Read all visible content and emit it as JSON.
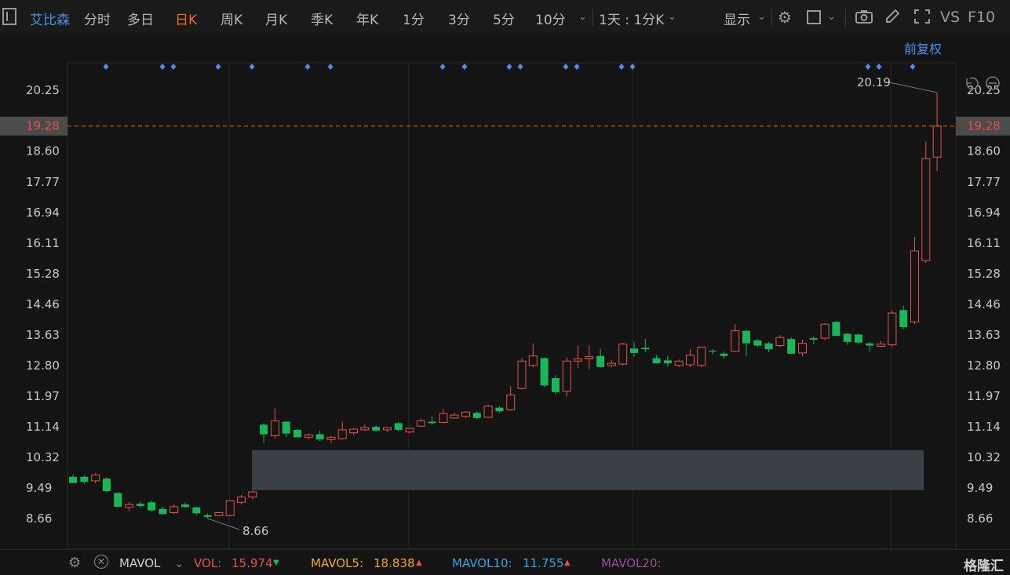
{
  "toolbar": {
    "stock_name": "艾比森",
    "periods": [
      "分时",
      "多日",
      "日K",
      "周K",
      "月K",
      "季K",
      "年K",
      "1分",
      "3分",
      "5分",
      "10分"
    ],
    "active_period": "日K",
    "range_label": "1天 : 1分K",
    "display_label": "显示",
    "vs_label": "VS",
    "f10_label": "F10"
  },
  "chart_header": {
    "adjust_label": "前复权"
  },
  "price_axis": {
    "ticks": [
      "20.25",
      "18.60",
      "17.77",
      "16.94",
      "16.11",
      "15.28",
      "14.46",
      "13.63",
      "12.80",
      "11.97",
      "11.14",
      "10.32",
      "9.49",
      "8.66"
    ],
    "tick_values": [
      20.25,
      18.6,
      17.77,
      16.94,
      16.11,
      15.28,
      14.46,
      13.63,
      12.8,
      11.97,
      11.14,
      10.32,
      9.49,
      8.66
    ],
    "current_price": "19.28",
    "current_value": 19.28,
    "high_label": "20.19",
    "high_value": 20.19,
    "low_label": "8.66",
    "low_value": 8.66
  },
  "chart_data": {
    "type": "candlestick",
    "ylim": [
      8.0,
      21.0
    ],
    "up_color": "#e5534b",
    "down_color": "#16b857",
    "candles": [
      {
        "o": 9.79,
        "h": 9.85,
        "l": 9.62,
        "c": 9.62
      },
      {
        "o": 9.79,
        "h": 9.83,
        "l": 9.6,
        "c": 9.65
      },
      {
        "o": 9.68,
        "h": 9.88,
        "l": 9.62,
        "c": 9.84
      },
      {
        "o": 9.74,
        "h": 9.78,
        "l": 9.38,
        "c": 9.4
      },
      {
        "o": 9.35,
        "h": 9.38,
        "l": 8.96,
        "c": 8.98
      },
      {
        "o": 8.96,
        "h": 9.1,
        "l": 8.86,
        "c": 9.04
      },
      {
        "o": 9.06,
        "h": 9.12,
        "l": 8.95,
        "c": 9.0
      },
      {
        "o": 9.1,
        "h": 9.14,
        "l": 8.84,
        "c": 8.88
      },
      {
        "o": 8.92,
        "h": 8.98,
        "l": 8.76,
        "c": 8.78
      },
      {
        "o": 8.82,
        "h": 9.04,
        "l": 8.78,
        "c": 8.98
      },
      {
        "o": 9.04,
        "h": 9.1,
        "l": 8.95,
        "c": 8.97
      },
      {
        "o": 8.96,
        "h": 8.98,
        "l": 8.76,
        "c": 8.8
      },
      {
        "o": 8.75,
        "h": 8.8,
        "l": 8.66,
        "c": 8.7
      },
      {
        "o": 8.74,
        "h": 8.84,
        "l": 8.72,
        "c": 8.82
      },
      {
        "o": 8.74,
        "h": 9.16,
        "l": 8.72,
        "c": 9.14
      },
      {
        "o": 9.1,
        "h": 9.3,
        "l": 9.04,
        "c": 9.24
      },
      {
        "o": 9.24,
        "h": 9.42,
        "l": 9.18,
        "c": 9.38
      },
      {
        "o": 11.2,
        "h": 11.24,
        "l": 10.7,
        "c": 10.94
      },
      {
        "o": 10.9,
        "h": 11.64,
        "l": 10.82,
        "c": 11.3
      },
      {
        "o": 11.28,
        "h": 11.3,
        "l": 10.86,
        "c": 10.96
      },
      {
        "o": 11.06,
        "h": 11.08,
        "l": 10.86,
        "c": 10.86
      },
      {
        "o": 10.86,
        "h": 10.96,
        "l": 10.8,
        "c": 10.92
      },
      {
        "o": 10.94,
        "h": 11.04,
        "l": 10.76,
        "c": 10.8
      },
      {
        "o": 10.8,
        "h": 10.9,
        "l": 10.7,
        "c": 10.86
      },
      {
        "o": 10.82,
        "h": 11.28,
        "l": 10.8,
        "c": 11.06
      },
      {
        "o": 10.98,
        "h": 11.1,
        "l": 10.92,
        "c": 11.08
      },
      {
        "o": 11.06,
        "h": 11.2,
        "l": 11.04,
        "c": 11.12
      },
      {
        "o": 11.14,
        "h": 11.18,
        "l": 11.02,
        "c": 11.04
      },
      {
        "o": 11.06,
        "h": 11.14,
        "l": 11.0,
        "c": 11.12
      },
      {
        "o": 11.24,
        "h": 11.28,
        "l": 11.02,
        "c": 11.06
      },
      {
        "o": 11.0,
        "h": 11.12,
        "l": 10.96,
        "c": 11.1
      },
      {
        "o": 11.16,
        "h": 11.36,
        "l": 11.14,
        "c": 11.3
      },
      {
        "o": 11.28,
        "h": 11.42,
        "l": 11.2,
        "c": 11.24
      },
      {
        "o": 11.26,
        "h": 11.62,
        "l": 11.24,
        "c": 11.5
      },
      {
        "o": 11.38,
        "h": 11.52,
        "l": 11.36,
        "c": 11.46
      },
      {
        "o": 11.42,
        "h": 11.56,
        "l": 11.38,
        "c": 11.54
      },
      {
        "o": 11.52,
        "h": 11.56,
        "l": 11.34,
        "c": 11.38
      },
      {
        "o": 11.4,
        "h": 11.74,
        "l": 11.38,
        "c": 11.7
      },
      {
        "o": 11.66,
        "h": 11.7,
        "l": 11.52,
        "c": 11.56
      },
      {
        "o": 11.6,
        "h": 12.24,
        "l": 11.58,
        "c": 12.0
      },
      {
        "o": 12.18,
        "h": 13.0,
        "l": 12.16,
        "c": 12.92
      },
      {
        "o": 12.8,
        "h": 13.4,
        "l": 12.76,
        "c": 13.06
      },
      {
        "o": 13.0,
        "h": 13.02,
        "l": 12.22,
        "c": 12.26
      },
      {
        "o": 12.46,
        "h": 12.54,
        "l": 12.02,
        "c": 12.08
      },
      {
        "o": 12.1,
        "h": 13.02,
        "l": 11.96,
        "c": 12.92
      },
      {
        "o": 12.92,
        "h": 13.34,
        "l": 12.72,
        "c": 12.98
      },
      {
        "o": 12.98,
        "h": 13.34,
        "l": 12.7,
        "c": 13.04
      },
      {
        "o": 13.06,
        "h": 13.26,
        "l": 12.74,
        "c": 12.76
      },
      {
        "o": 12.8,
        "h": 12.94,
        "l": 12.76,
        "c": 12.86
      },
      {
        "o": 12.84,
        "h": 13.42,
        "l": 12.8,
        "c": 13.38
      },
      {
        "o": 13.26,
        "h": 13.44,
        "l": 13.04,
        "c": 13.14
      },
      {
        "o": 13.28,
        "h": 13.52,
        "l": 13.16,
        "c": 13.24
      },
      {
        "o": 13.0,
        "h": 13.08,
        "l": 12.86,
        "c": 12.86
      },
      {
        "o": 12.94,
        "h": 13.06,
        "l": 12.76,
        "c": 12.86
      },
      {
        "o": 12.8,
        "h": 12.96,
        "l": 12.76,
        "c": 12.92
      },
      {
        "o": 12.82,
        "h": 13.24,
        "l": 12.76,
        "c": 13.08
      },
      {
        "o": 12.8,
        "h": 13.3,
        "l": 12.76,
        "c": 13.3
      },
      {
        "o": 13.2,
        "h": 13.24,
        "l": 13.1,
        "c": 13.18
      },
      {
        "o": 13.12,
        "h": 13.18,
        "l": 12.98,
        "c": 13.06
      },
      {
        "o": 13.18,
        "h": 13.92,
        "l": 13.16,
        "c": 13.74
      },
      {
        "o": 13.74,
        "h": 13.76,
        "l": 13.06,
        "c": 13.4
      },
      {
        "o": 13.48,
        "h": 13.52,
        "l": 13.3,
        "c": 13.34
      },
      {
        "o": 13.4,
        "h": 13.44,
        "l": 13.16,
        "c": 13.24
      },
      {
        "o": 13.34,
        "h": 13.62,
        "l": 13.3,
        "c": 13.56
      },
      {
        "o": 13.52,
        "h": 13.56,
        "l": 13.12,
        "c": 13.12
      },
      {
        "o": 13.14,
        "h": 13.5,
        "l": 13.06,
        "c": 13.4
      },
      {
        "o": 13.54,
        "h": 13.58,
        "l": 13.38,
        "c": 13.5
      },
      {
        "o": 13.54,
        "h": 13.94,
        "l": 13.48,
        "c": 13.92
      },
      {
        "o": 13.98,
        "h": 14.0,
        "l": 13.6,
        "c": 13.6
      },
      {
        "o": 13.66,
        "h": 13.68,
        "l": 13.36,
        "c": 13.44
      },
      {
        "o": 13.64,
        "h": 13.66,
        "l": 13.4,
        "c": 13.42
      },
      {
        "o": 13.4,
        "h": 13.44,
        "l": 13.18,
        "c": 13.34
      },
      {
        "o": 13.32,
        "h": 13.46,
        "l": 13.3,
        "c": 13.38
      },
      {
        "o": 13.36,
        "h": 14.3,
        "l": 13.3,
        "c": 14.22
      },
      {
        "o": 14.3,
        "h": 14.42,
        "l": 13.78,
        "c": 13.84
      },
      {
        "o": 13.98,
        "h": 16.28,
        "l": 13.92,
        "c": 15.9
      },
      {
        "o": 15.64,
        "h": 18.86,
        "l": 15.58,
        "c": 18.4
      },
      {
        "o": 18.44,
        "h": 20.19,
        "l": 18.06,
        "c": 19.28
      }
    ]
  },
  "volume_bar": {
    "indicator": "MAVOL",
    "vol_label": "VOL:",
    "vol_value": "15.974",
    "vol_dir": "down",
    "mavol5_label": "MAVOL5:",
    "mavol5_value": "18.838",
    "mavol5_dir": "up",
    "mavol10_label": "MAVOL10:",
    "mavol10_value": "11.755",
    "mavol10_dir": "up",
    "mavol20_label": "MAVOL20:"
  },
  "watermark": "格隆汇",
  "colors": {
    "accent_orange": "#f26b1d",
    "blue": "#4d8fe8",
    "up": "#e5534b",
    "down": "#16b857",
    "mavol5": "#f5a623",
    "mavol10": "#2fa8e0",
    "mavol20": "#9b4f9e"
  }
}
